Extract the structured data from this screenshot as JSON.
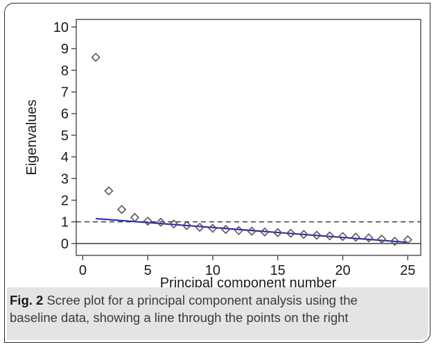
{
  "caption": {
    "label": "Fig. 2",
    "text": " Scree plot for a principal component analysis using the baseline data, showing a line through the points on the right"
  },
  "chart_data": {
    "type": "scatter",
    "title": "",
    "xlabel": "Principal component number",
    "ylabel": "Eigenvalues",
    "xlim": [
      -0.5,
      26
    ],
    "ylim": [
      -0.55,
      10.35
    ],
    "xticks": [
      0,
      5,
      10,
      15,
      20,
      25
    ],
    "yticks": [
      0,
      1,
      2,
      3,
      4,
      5,
      6,
      7,
      8,
      9,
      10
    ],
    "marker": "hollow-diamond",
    "marker_color": "#555555",
    "x": [
      1,
      2,
      3,
      4,
      5,
      6,
      7,
      8,
      9,
      10,
      11,
      12,
      13,
      14,
      15,
      16,
      17,
      18,
      19,
      20,
      21,
      22,
      23,
      24,
      25
    ],
    "y": [
      8.6,
      2.43,
      1.57,
      1.2,
      1.03,
      0.98,
      0.9,
      0.83,
      0.75,
      0.7,
      0.65,
      0.6,
      0.57,
      0.53,
      0.5,
      0.47,
      0.42,
      0.38,
      0.35,
      0.32,
      0.29,
      0.26,
      0.2,
      0.1,
      0.17
    ],
    "fit_line": {
      "x": [
        1,
        25
      ],
      "y": [
        1.15,
        0.05
      ],
      "color": "#1f1fbf"
    },
    "reference_lines": [
      {
        "y": 1,
        "style": "dashed",
        "color": "#3a3a3a"
      },
      {
        "y": 0,
        "style": "solid",
        "color": "#3a3a3a"
      }
    ]
  }
}
